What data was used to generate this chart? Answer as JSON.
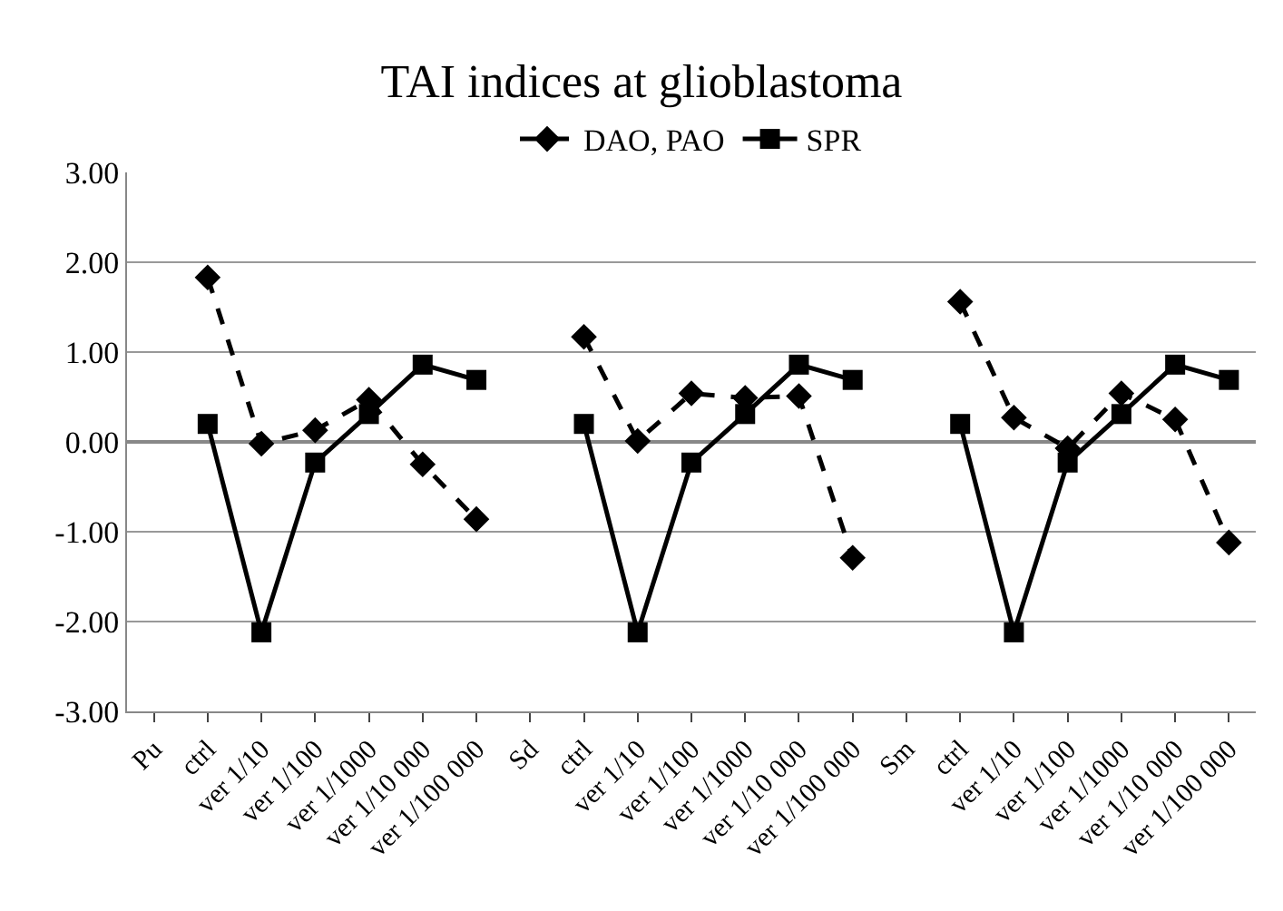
{
  "chart_data": {
    "type": "line",
    "title": "TAI indices at glioblastoma",
    "categories": [
      "Pu",
      "ctrl",
      "ver 1/10",
      "ver 1/100",
      "ver 1/1000",
      "ver 1/10 000",
      "ver 1/100 000",
      "Sd",
      "ctrl",
      "ver 1/10",
      "ver 1/100",
      "ver 1/1000",
      "ver 1/10 000",
      "ver 1/100 000",
      "Sm",
      "ctrl",
      "ver 1/10",
      "ver 1/100",
      "ver 1/1000",
      "ver 1/10 000",
      "ver 1/100 000"
    ],
    "series": [
      {
        "name": "DAO, PAO",
        "color": "#000000",
        "marker": "diamond",
        "line_style": "dashed",
        "values": [
          null,
          1.83,
          -0.02,
          0.13,
          0.47,
          -0.25,
          -0.86,
          null,
          1.17,
          0.01,
          0.54,
          0.49,
          0.51,
          -1.29,
          null,
          1.56,
          0.27,
          -0.07,
          0.54,
          0.25,
          -1.12
        ]
      },
      {
        "name": "SPR",
        "color": "#000000",
        "marker": "square",
        "line_style": "solid",
        "values": [
          null,
          0.2,
          -2.12,
          -0.23,
          0.31,
          0.86,
          0.69,
          null,
          0.2,
          -2.12,
          -0.23,
          0.31,
          0.86,
          0.69,
          null,
          0.2,
          -2.12,
          -0.23,
          0.31,
          0.86,
          0.69
        ]
      }
    ],
    "ylim": [
      -3,
      3
    ],
    "yticks": [
      {
        "value": -3,
        "label": "-3.00"
      },
      {
        "value": -2,
        "label": "-2.00"
      },
      {
        "value": -1,
        "label": "-1.00"
      },
      {
        "value": 0,
        "label": "0.00"
      },
      {
        "value": 1,
        "label": "1.00"
      },
      {
        "value": 2,
        "label": "2.00"
      },
      {
        "value": 3,
        "label": "3.00"
      }
    ],
    "grid": "y",
    "legend": "top"
  }
}
